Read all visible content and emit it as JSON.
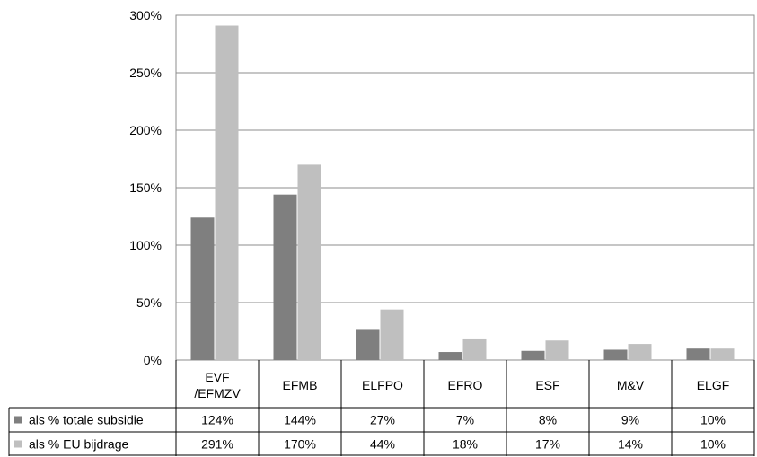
{
  "chart_data": {
    "type": "bar",
    "title": "",
    "xlabel": "",
    "ylabel": "",
    "ylim": [
      0,
      300
    ],
    "yticks": [
      0,
      50,
      100,
      150,
      200,
      250,
      300
    ],
    "ytick_suffix": "%",
    "grid": true,
    "legend": "data-table-below",
    "categories": [
      {
        "line1": "EVF",
        "line2": "/EFMZV"
      },
      {
        "line1": "EFMB",
        "line2": ""
      },
      {
        "line1": "ELFPO",
        "line2": ""
      },
      {
        "line1": "EFRO",
        "line2": ""
      },
      {
        "line1": "ESF",
        "line2": ""
      },
      {
        "line1": "M&V",
        "line2": ""
      },
      {
        "line1": "ELGF",
        "line2": ""
      }
    ],
    "series": [
      {
        "name": "als % totale subsidie",
        "color": "#7f7f7f",
        "values": [
          124,
          144,
          27,
          7,
          8,
          9,
          10
        ]
      },
      {
        "name": "als % EU bijdrage",
        "color": "#bfbfbf",
        "values": [
          291,
          170,
          44,
          18,
          17,
          14,
          10
        ]
      }
    ]
  }
}
